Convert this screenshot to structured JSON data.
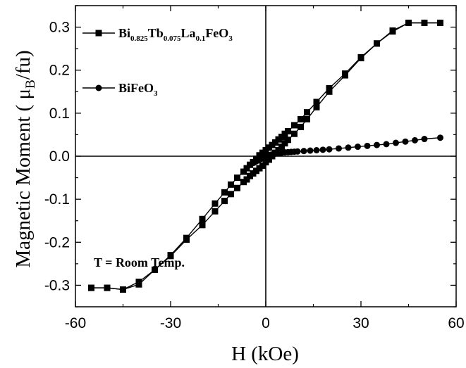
{
  "chart_data": {
    "type": "line",
    "xlabel": "H (kOe)",
    "ylabel_main": "Magnetic Moment ( μ",
    "ylabel_sub": "B",
    "ylabel_tail": "/fu)",
    "xlim": [
      -60,
      60
    ],
    "ylim": [
      -0.35,
      0.35
    ],
    "x_ticks": [
      -60,
      -30,
      0,
      30,
      60
    ],
    "x_tick_labels": [
      "-60",
      "-30",
      "0",
      "30",
      "60"
    ],
    "y_ticks": [
      -0.3,
      -0.2,
      -0.1,
      0.0,
      0.1,
      0.2,
      0.3
    ],
    "y_tick_labels": [
      "-0.3",
      "-0.2",
      "-0.1",
      "0.0",
      "0.1",
      "0.2",
      "0.3"
    ],
    "grid": false,
    "zero_lines": true,
    "legend_position": "top-left",
    "annotation": "T = Room Temp.",
    "series": [
      {
        "name_parts": [
          {
            "t": "Bi",
            "sub": false
          },
          {
            "t": "0.825",
            "sub": true
          },
          {
            "t": "Tb",
            "sub": false
          },
          {
            "t": "0.075",
            "sub": true
          },
          {
            "t": "La",
            "sub": false
          },
          {
            "t": "0.1",
            "sub": true
          },
          {
            "t": "FeO",
            "sub": false
          },
          {
            "t": "3",
            "sub": true
          }
        ],
        "marker": "square",
        "color": "#000000",
        "branches": [
          {
            "x": [
              55,
              50,
              45,
              40,
              35,
              30,
              25,
              20,
              16,
              13,
              11,
              9,
              7,
              6,
              5,
              4,
              3,
              2,
              1,
              0,
              -1,
              -2,
              -3,
              -4,
              -5,
              -6,
              -7,
              -9,
              -11,
              -13,
              -16,
              -20,
              -25,
              -30,
              -35,
              -40,
              -45,
              -50,
              -55
            ],
            "y": [
              0.31,
              0.31,
              0.31,
              0.29,
              0.262,
              0.23,
              0.192,
              0.158,
              0.126,
              0.102,
              0.086,
              0.072,
              0.058,
              0.052,
              0.045,
              0.039,
              0.032,
              0.026,
              0.02,
              0.014,
              0.008,
              0.002,
              -0.006,
              -0.014,
              -0.02,
              -0.028,
              -0.036,
              -0.05,
              -0.066,
              -0.084,
              -0.11,
              -0.146,
              -0.19,
              -0.23,
              -0.264,
              -0.292,
              -0.31,
              -0.306,
              -0.306
            ]
          },
          {
            "x": [
              -55,
              -50,
              -45,
              -40,
              -35,
              -30,
              -25,
              -20,
              -16,
              -13,
              -11,
              -9,
              -7,
              -6,
              -5,
              -4,
              -3,
              -2,
              -1,
              0,
              1,
              2,
              3,
              4,
              5,
              6,
              7,
              9,
              11,
              13,
              16,
              20,
              25,
              30,
              35,
              40,
              45,
              50,
              55
            ],
            "y": [
              -0.306,
              -0.306,
              -0.31,
              -0.298,
              -0.264,
              -0.232,
              -0.194,
              -0.16,
              -0.128,
              -0.104,
              -0.088,
              -0.074,
              -0.06,
              -0.054,
              -0.046,
              -0.04,
              -0.034,
              -0.028,
              -0.022,
              -0.014,
              -0.008,
              0.0,
              0.008,
              0.014,
              0.022,
              0.03,
              0.038,
              0.052,
              0.068,
              0.086,
              0.114,
              0.15,
              0.188,
              0.228,
              0.262,
              0.292,
              0.31,
              0.31,
              0.31
            ]
          }
        ]
      },
      {
        "name_parts": [
          {
            "t": "BiFeO",
            "sub": false
          },
          {
            "t": "3",
            "sub": true
          }
        ],
        "marker": "circle",
        "color": "#000000",
        "branches": [
          {
            "x": [
              -5,
              -4,
              -3,
              -2.5,
              -2,
              -1.5,
              -1,
              -0.5,
              0,
              0.5,
              1,
              1.5,
              2,
              2.5,
              3,
              4,
              5,
              6,
              7,
              8,
              9,
              10,
              12,
              14,
              16,
              18,
              20,
              23,
              26,
              29,
              32,
              35,
              38,
              41,
              44,
              47,
              50,
              55
            ],
            "y": [
              -0.02,
              -0.016,
              -0.012,
              -0.01,
              -0.008,
              -0.006,
              -0.004,
              -0.002,
              0.0,
              0.001,
              0.002,
              0.003,
              0.004,
              0.005,
              0.006,
              0.007,
              0.008,
              0.009,
              0.0095,
              0.01,
              0.0105,
              0.011,
              0.012,
              0.013,
              0.014,
              0.015,
              0.016,
              0.018,
              0.02,
              0.022,
              0.024,
              0.026,
              0.028,
              0.031,
              0.034,
              0.037,
              0.04,
              0.043
            ]
          }
        ]
      }
    ]
  }
}
